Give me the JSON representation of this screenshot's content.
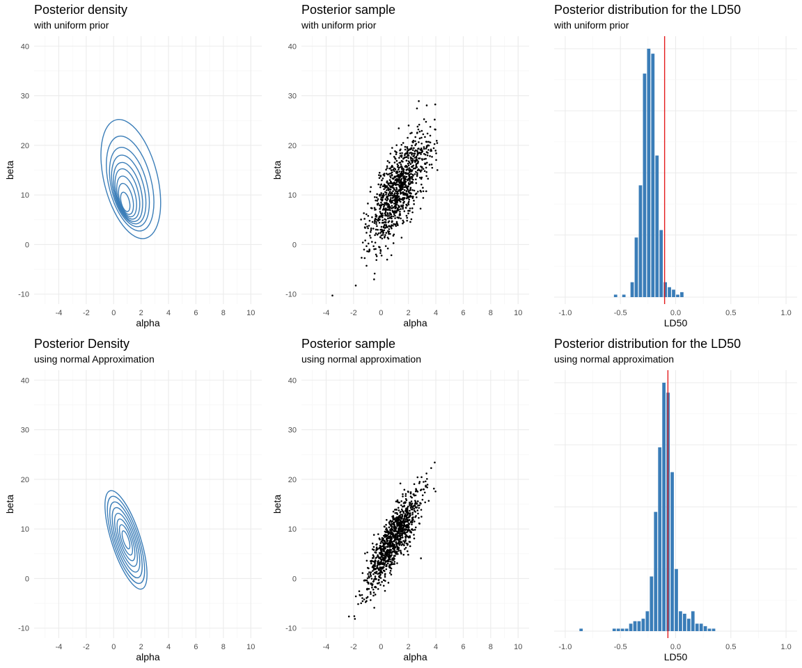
{
  "chart_data": [
    {
      "id": "p1",
      "type": "contour",
      "title": "Posterior density",
      "subtitle": "with uniform prior",
      "xlabel": "alpha",
      "ylabel": "beta",
      "xlim": [
        -5.8,
        10.8
      ],
      "ylim": [
        -12,
        42
      ],
      "xticks": [
        -4,
        -2,
        0,
        2,
        4,
        6,
        8,
        10
      ],
      "yticks": [
        -10,
        0,
        10,
        20,
        30,
        40
      ],
      "color": "#3a7db8",
      "contours": [
        {
          "cx": 1.25,
          "cy": 13.2,
          "rx": 1.95,
          "ry": 12.3,
          "angle": -14
        },
        {
          "cx": 1.2,
          "cy": 12.3,
          "rx": 1.55,
          "ry": 9.8,
          "angle": -14
        },
        {
          "cx": 1.15,
          "cy": 11.6,
          "rx": 1.3,
          "ry": 8.2,
          "angle": -14
        },
        {
          "cx": 1.1,
          "cy": 11.1,
          "rx": 1.12,
          "ry": 7.1,
          "angle": -14
        },
        {
          "cx": 1.05,
          "cy": 10.6,
          "rx": 0.95,
          "ry": 6.1,
          "angle": -14
        },
        {
          "cx": 1.0,
          "cy": 10.2,
          "rx": 0.8,
          "ry": 5.2,
          "angle": -14
        },
        {
          "cx": 0.95,
          "cy": 9.7,
          "rx": 0.64,
          "ry": 4.2,
          "angle": -14
        },
        {
          "cx": 0.9,
          "cy": 9.2,
          "rx": 0.48,
          "ry": 3.2,
          "angle": -14
        },
        {
          "cx": 0.85,
          "cy": 8.6,
          "rx": 0.3,
          "ry": 2.0,
          "angle": -14
        }
      ]
    },
    {
      "id": "p2",
      "type": "scatter",
      "title": "Posterior sample",
      "subtitle": "with uniform prior",
      "xlabel": "alpha",
      "ylabel": "beta",
      "xlim": [
        -5.8,
        10.8
      ],
      "ylim": [
        -12,
        42
      ],
      "xticks": [
        -4,
        -2,
        0,
        2,
        4,
        6,
        8,
        10
      ],
      "yticks": [
        -10,
        0,
        10,
        20,
        30,
        40
      ],
      "color": "#000000",
      "sample": {
        "n": 1000,
        "mean_x": 1.3,
        "mean_y": 11.0,
        "sd_x": 1.1,
        "sd_y": 5.6,
        "rho": 0.72
      }
    },
    {
      "id": "p3",
      "type": "bar",
      "title": "Posterior distribution for the LD50",
      "subtitle": "with uniform prior",
      "xlabel": "LD50",
      "ylabel": "",
      "xlim": [
        -1.1,
        1.1
      ],
      "ylim": [
        0,
        100
      ],
      "xticks": [
        -1.0,
        -0.5,
        0.0,
        0.5,
        1.0
      ],
      "yticks": [],
      "color": "#3a7db8",
      "vline": -0.1,
      "vline_color": "#e41a1c",
      "bin_start": -0.5625,
      "bin_width": 0.0375,
      "values": [
        1,
        0,
        1,
        0,
        6,
        24,
        45,
        90,
        100,
        98,
        57,
        27,
        6,
        4,
        3,
        1,
        2,
        0,
        0,
        0
      ]
    },
    {
      "id": "p4",
      "type": "contour",
      "title": "Posterior Density",
      "subtitle": "using normal Approximation",
      "xlabel": "alpha",
      "ylabel": "beta",
      "xlim": [
        -5.8,
        10.8
      ],
      "ylim": [
        -12,
        42
      ],
      "xticks": [
        -4,
        -2,
        0,
        2,
        4,
        6,
        8,
        10
      ],
      "yticks": [
        -10,
        0,
        10,
        20,
        30,
        40
      ],
      "color": "#3a7db8",
      "contours": [
        {
          "cx": 0.9,
          "cy": 7.8,
          "rx": 1.05,
          "ry": 10.4,
          "angle": -18
        },
        {
          "cx": 0.9,
          "cy": 7.8,
          "rx": 0.93,
          "ry": 9.2,
          "angle": -18
        },
        {
          "cx": 0.9,
          "cy": 7.8,
          "rx": 0.81,
          "ry": 8.0,
          "angle": -18
        },
        {
          "cx": 0.9,
          "cy": 7.8,
          "rx": 0.69,
          "ry": 6.8,
          "angle": -18
        },
        {
          "cx": 0.9,
          "cy": 7.8,
          "rx": 0.57,
          "ry": 5.6,
          "angle": -18
        },
        {
          "cx": 0.9,
          "cy": 7.8,
          "rx": 0.45,
          "ry": 4.4,
          "angle": -18
        },
        {
          "cx": 0.9,
          "cy": 7.8,
          "rx": 0.33,
          "ry": 3.2,
          "angle": -18
        },
        {
          "cx": 0.9,
          "cy": 7.8,
          "rx": 0.2,
          "ry": 1.9,
          "angle": -18
        }
      ]
    },
    {
      "id": "p5",
      "type": "scatter",
      "title": "Posterior sample",
      "subtitle": "using normal approximation",
      "xlabel": "alpha",
      "ylabel": "beta",
      "xlim": [
        -5.8,
        10.8
      ],
      "ylim": [
        -12,
        42
      ],
      "xticks": [
        -4,
        -2,
        0,
        2,
        4,
        6,
        8,
        10
      ],
      "yticks": [
        -10,
        0,
        10,
        20,
        30,
        40
      ],
      "color": "#000000",
      "sample": {
        "n": 1000,
        "mean_x": 0.9,
        "mean_y": 7.8,
        "sd_x": 1.05,
        "sd_y": 5.2,
        "rho": 0.85
      }
    },
    {
      "id": "p6",
      "type": "bar",
      "title": "Posterior distribution for the LD50",
      "subtitle": "using normal approximation",
      "xlabel": "LD50",
      "ylabel": "",
      "xlim": [
        -1.1,
        1.1
      ],
      "ylim": [
        0,
        100
      ],
      "xticks": [
        -1.0,
        -0.5,
        0.0,
        0.5,
        1.0
      ],
      "yticks": [],
      "color": "#3a7db8",
      "vline": -0.07,
      "vline_color": "#e41a1c",
      "bin_start": -0.875,
      "bin_width": 0.0375,
      "values": [
        1,
        0,
        0,
        0,
        0,
        0,
        0,
        0,
        1,
        1,
        1,
        1,
        3,
        4,
        4,
        5,
        8,
        22,
        48,
        74,
        100,
        96,
        64,
        25,
        8,
        7,
        5,
        8,
        3,
        3,
        2,
        1,
        1,
        0,
        0,
        0,
        0,
        0,
        0,
        0,
        0,
        0,
        0,
        0,
        0,
        0,
        0,
        0,
        0,
        0
      ]
    }
  ]
}
